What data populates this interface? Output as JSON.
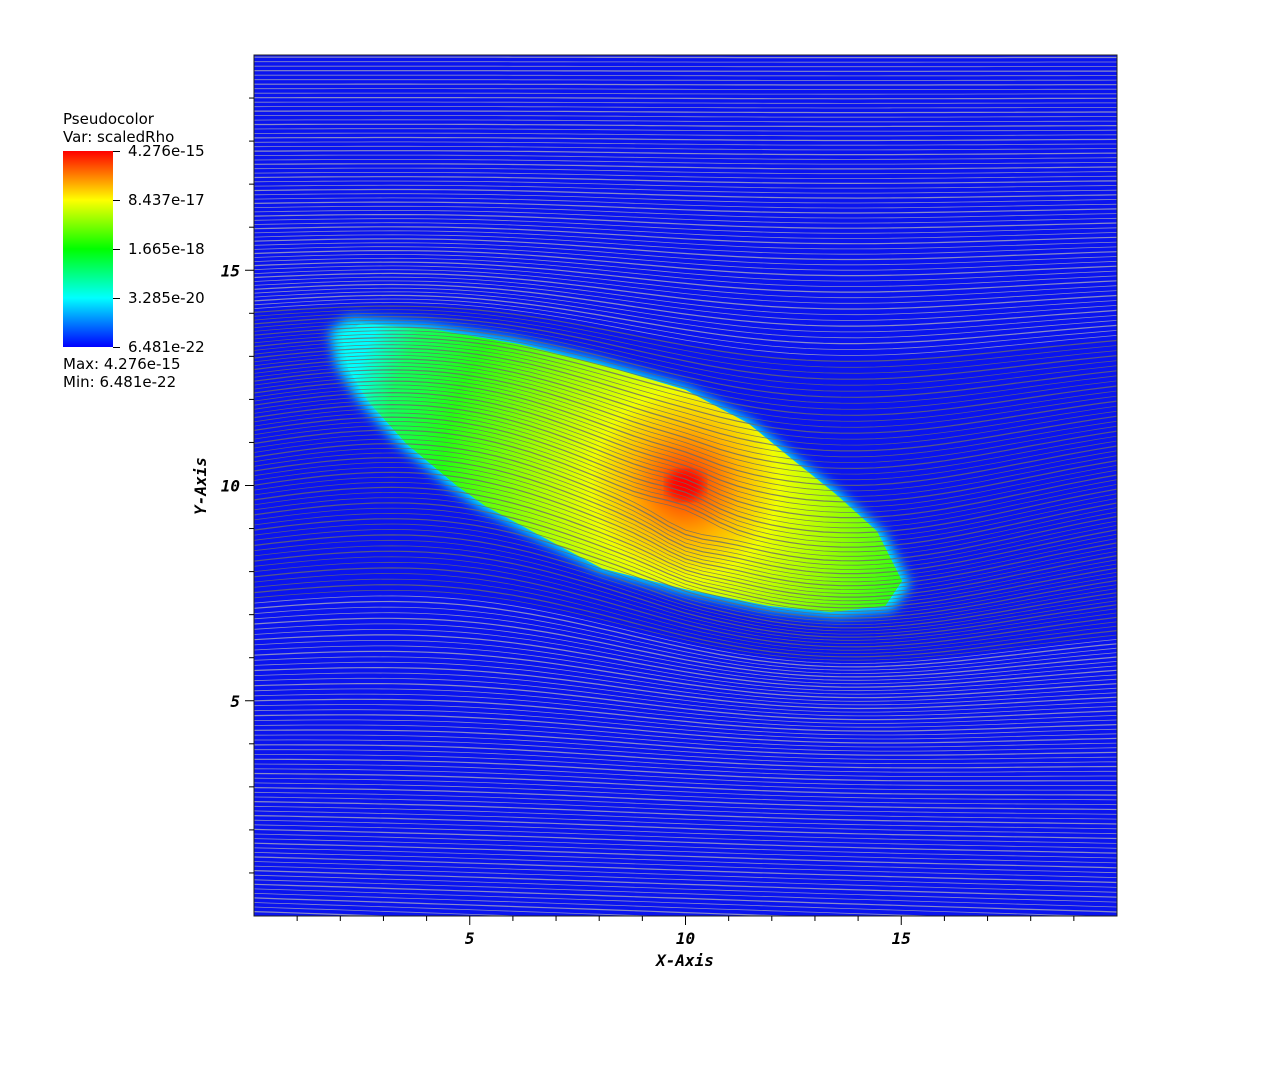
{
  "chart_data": {
    "type": "heatmap",
    "title": "",
    "xlabel": "X-Axis",
    "ylabel": "Y-Axis",
    "xlim": [
      0,
      20
    ],
    "ylim": [
      0,
      20
    ],
    "x_ticks": [
      5,
      10,
      15
    ],
    "y_ticks": [
      5,
      10,
      15
    ],
    "legend": {
      "plot_type": "Pseudocolor",
      "variable": "Var: scaledRho",
      "colorbar_ticks": [
        "4.276e-15",
        "8.437e-17",
        "1.665e-18",
        "3.285e-20",
        "6.481e-22"
      ],
      "max_text": "Max:  4.276e-15",
      "min_text": "Min:  6.481e-22",
      "max": 4.276e-15,
      "min": 6.481e-22,
      "scale": "log",
      "position": "top-left"
    },
    "colors": {
      "background_field": "#0a14f0",
      "streamline": "#b4b4b4",
      "cloud_edge": "#00ffff",
      "cloud_mid": "#00ff00",
      "cloud_core": "#ff0000"
    },
    "overlay": "streamlines",
    "feature": {
      "shape": "elongated high-density cloud",
      "center": [
        10,
        10
      ],
      "extent_x": [
        1.7,
        15.2
      ],
      "extent_y": [
        7.0,
        13.9
      ]
    }
  }
}
